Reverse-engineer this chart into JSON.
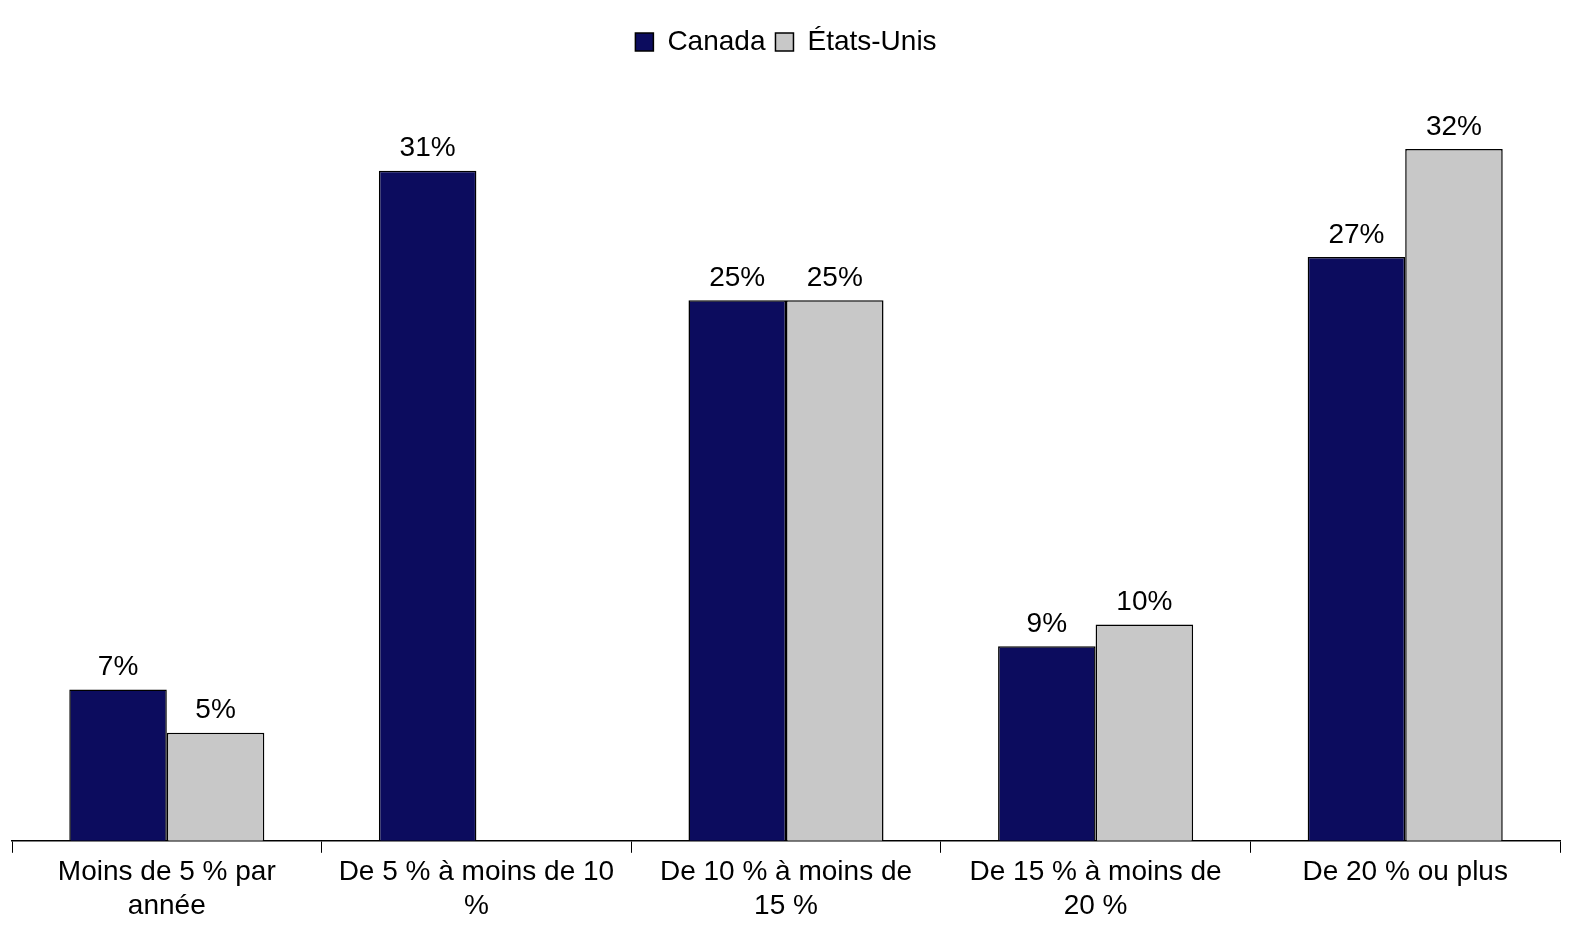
{
  "chart_data": {
    "type": "bar",
    "categories": [
      "Moins de 5 % par année",
      "De 5 % à moins de 10 %",
      "De 10 % à moins de 15 %",
      "De 15 % à moins de 20 %",
      "De 20 % ou plus"
    ],
    "series": [
      {
        "name": "Canada",
        "color": "#0c0c5e",
        "values": [
          7,
          31,
          25,
          9,
          27
        ],
        "value_labels": [
          "7%",
          "31%",
          "25%",
          "9%",
          "27%"
        ]
      },
      {
        "name": "États-Unis",
        "color": "#c8c8c8",
        "values": [
          5,
          null,
          25,
          10,
          32
        ],
        "value_labels": [
          "5%",
          null,
          "25%",
          "10%",
          "32%"
        ]
      }
    ],
    "legend": "top",
    "grid": false
  }
}
